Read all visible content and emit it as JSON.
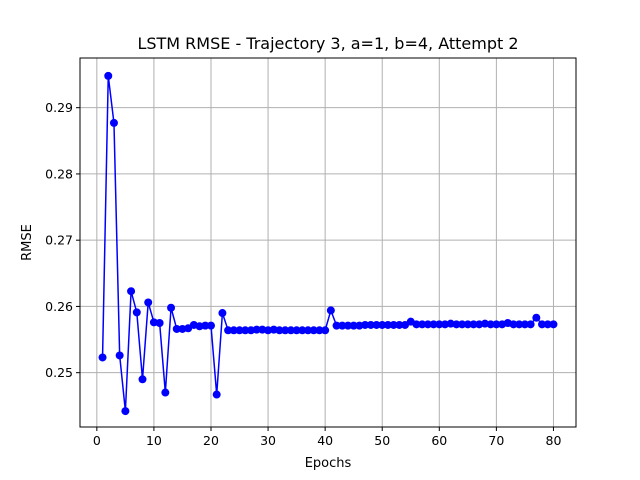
{
  "chart_data": {
    "type": "line",
    "title": "LSTM RMSE - Trajectory 3, a=1, b=4, Attempt 2",
    "xlabel": "Epochs",
    "ylabel": "RMSE",
    "xlim": [
      -2.95,
      83.95
    ],
    "ylim": [
      0.2418,
      0.2975
    ],
    "xticks": [
      0,
      10,
      20,
      30,
      40,
      50,
      60,
      70,
      80
    ],
    "yticks": [
      0.25,
      0.26,
      0.27,
      0.28,
      0.29
    ],
    "xtick_labels": [
      "0",
      "10",
      "20",
      "30",
      "40",
      "50",
      "60",
      "70",
      "80"
    ],
    "ytick_labels": [
      "0.25",
      "0.26",
      "0.27",
      "0.28",
      "0.29"
    ],
    "grid": true,
    "series": [
      {
        "color": "#0000ff",
        "marker": "circle",
        "x": [
          1,
          2,
          3,
          4,
          5,
          6,
          7,
          8,
          9,
          10,
          11,
          12,
          13,
          14,
          15,
          16,
          17,
          18,
          19,
          20,
          21,
          22,
          23,
          24,
          25,
          26,
          27,
          28,
          29,
          30,
          31,
          32,
          33,
          34,
          35,
          36,
          37,
          38,
          39,
          40,
          41,
          42,
          43,
          44,
          45,
          46,
          47,
          48,
          49,
          50,
          51,
          52,
          53,
          54,
          55,
          56,
          57,
          58,
          59,
          60,
          61,
          62,
          63,
          64,
          65,
          66,
          67,
          68,
          69,
          70,
          71,
          72,
          73,
          74,
          75,
          76,
          77,
          78,
          79,
          80
        ],
        "y": [
          0.2523,
          0.2948,
          0.2877,
          0.2526,
          0.2442,
          0.2623,
          0.2591,
          0.249,
          0.2606,
          0.2576,
          0.2575,
          0.247,
          0.2598,
          0.2566,
          0.2566,
          0.2567,
          0.2572,
          0.257,
          0.2571,
          0.2571,
          0.2467,
          0.259,
          0.2564,
          0.2564,
          0.2564,
          0.2564,
          0.2564,
          0.2565,
          0.2565,
          0.2564,
          0.2565,
          0.2564,
          0.2564,
          0.2564,
          0.2564,
          0.2564,
          0.2564,
          0.2564,
          0.2564,
          0.2564,
          0.2594,
          0.2571,
          0.2571,
          0.2571,
          0.2571,
          0.2571,
          0.2572,
          0.2572,
          0.2572,
          0.2572,
          0.2572,
          0.2572,
          0.2572,
          0.2572,
          0.2577,
          0.2573,
          0.2573,
          0.2573,
          0.2573,
          0.2573,
          0.2573,
          0.2574,
          0.2573,
          0.2573,
          0.2573,
          0.2573,
          0.2573,
          0.2574,
          0.2573,
          0.2573,
          0.2573,
          0.2575,
          0.2573,
          0.2573,
          0.2573,
          0.2573,
          0.2583,
          0.2573,
          0.2573,
          0.2573
        ]
      }
    ]
  }
}
